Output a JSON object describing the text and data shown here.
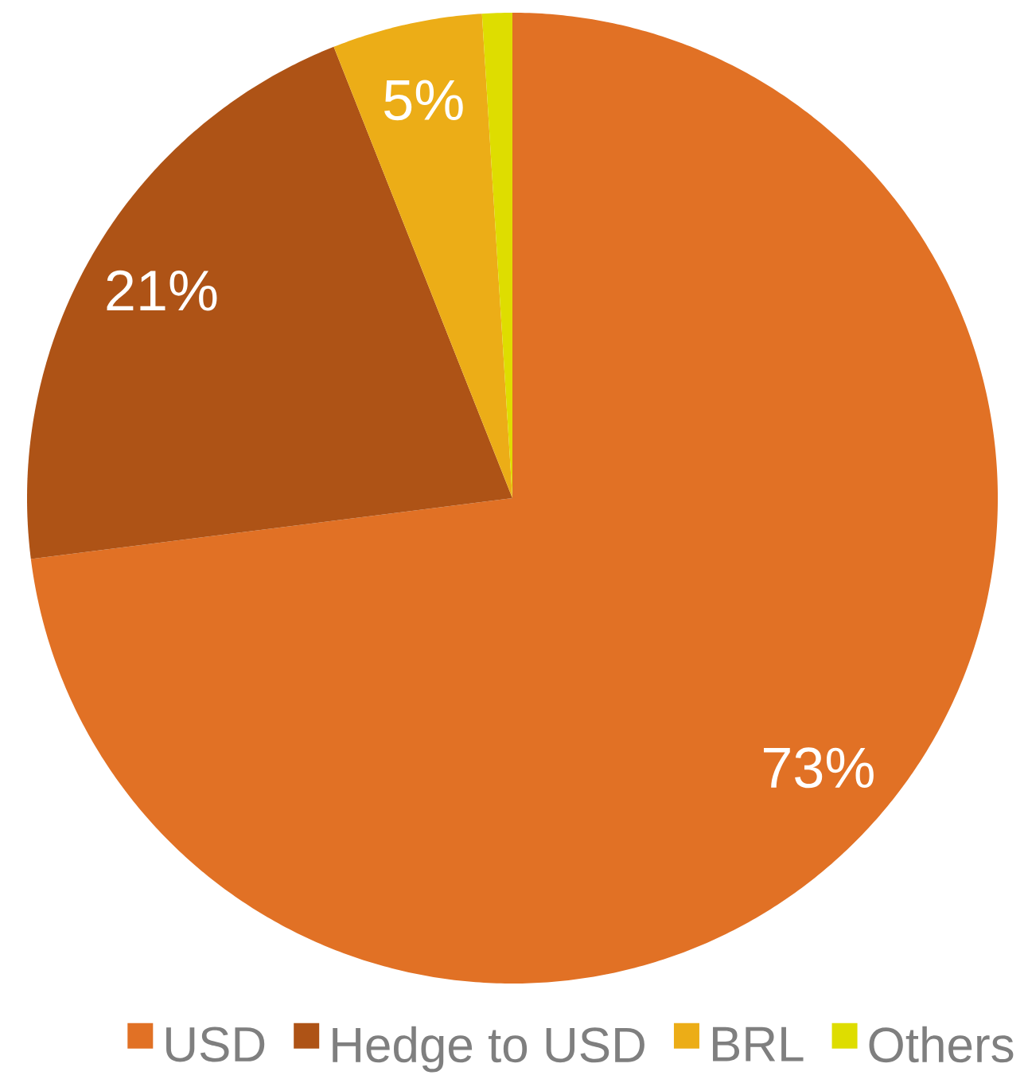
{
  "chart_data": {
    "type": "pie",
    "categories": [
      "USD",
      "Hedge to USD",
      "BRL",
      "Others"
    ],
    "values": [
      73,
      21,
      5,
      1
    ],
    "colors": [
      "#e17125",
      "#ae5316",
      "#ecad17",
      "#dedd00"
    ],
    "value_labels": [
      "73%",
      "21%",
      "5%",
      null
    ],
    "legend": "bottom"
  }
}
